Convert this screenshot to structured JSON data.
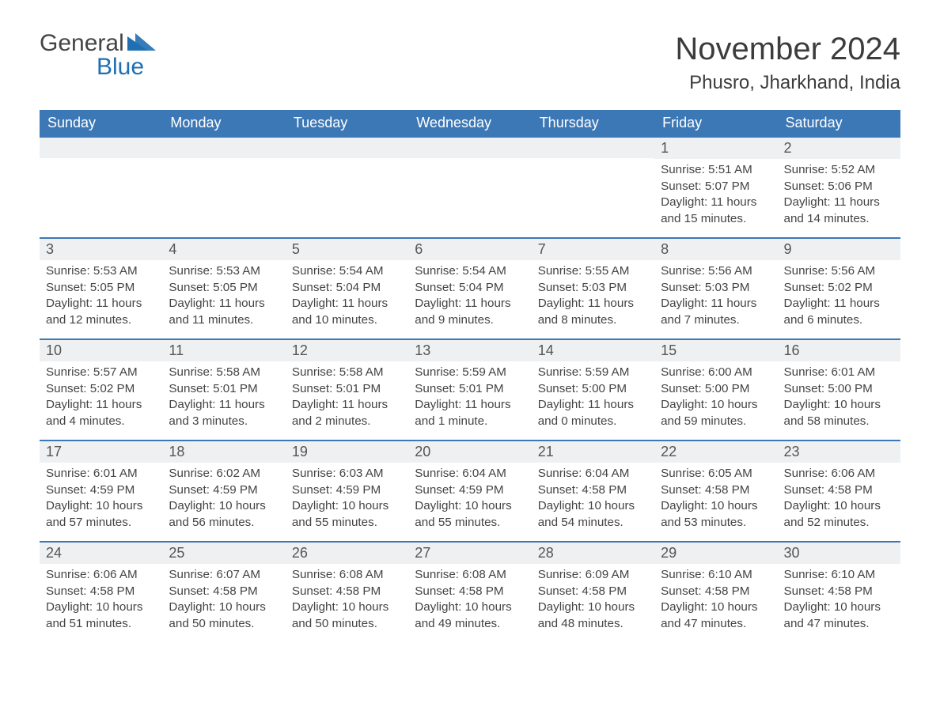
{
  "logo": {
    "word1": "General",
    "word2": "Blue",
    "accent_color": "#1f6fb2"
  },
  "title": {
    "month": "November 2024",
    "location": "Phusro, Jharkhand, India"
  },
  "colors": {
    "header_bg": "#3d78b6",
    "header_text": "#ffffff",
    "daynum_bg": "#eef0f2",
    "row_border": "#3d78b6",
    "body_text": "#444444",
    "title_text": "#3c3c3c",
    "page_bg": "#ffffff"
  },
  "typography": {
    "title_fontsize_pt": 30,
    "location_fontsize_pt": 18,
    "header_fontsize_pt": 14,
    "daynum_fontsize_pt": 14,
    "body_fontsize_pt": 11
  },
  "layout": {
    "columns": 7,
    "rows": 5,
    "week_start": "Sunday"
  },
  "day_headers": [
    "Sunday",
    "Monday",
    "Tuesday",
    "Wednesday",
    "Thursday",
    "Friday",
    "Saturday"
  ],
  "labels": {
    "sunrise": "Sunrise",
    "sunset": "Sunset",
    "daylight": "Daylight"
  },
  "weeks": [
    [
      null,
      null,
      null,
      null,
      null,
      {
        "date": 1,
        "sunrise": "5:51 AM",
        "sunset": "5:07 PM",
        "daylight": "11 hours and 15 minutes."
      },
      {
        "date": 2,
        "sunrise": "5:52 AM",
        "sunset": "5:06 PM",
        "daylight": "11 hours and 14 minutes."
      }
    ],
    [
      {
        "date": 3,
        "sunrise": "5:53 AM",
        "sunset": "5:05 PM",
        "daylight": "11 hours and 12 minutes."
      },
      {
        "date": 4,
        "sunrise": "5:53 AM",
        "sunset": "5:05 PM",
        "daylight": "11 hours and 11 minutes."
      },
      {
        "date": 5,
        "sunrise": "5:54 AM",
        "sunset": "5:04 PM",
        "daylight": "11 hours and 10 minutes."
      },
      {
        "date": 6,
        "sunrise": "5:54 AM",
        "sunset": "5:04 PM",
        "daylight": "11 hours and 9 minutes."
      },
      {
        "date": 7,
        "sunrise": "5:55 AM",
        "sunset": "5:03 PM",
        "daylight": "11 hours and 8 minutes."
      },
      {
        "date": 8,
        "sunrise": "5:56 AM",
        "sunset": "5:03 PM",
        "daylight": "11 hours and 7 minutes."
      },
      {
        "date": 9,
        "sunrise": "5:56 AM",
        "sunset": "5:02 PM",
        "daylight": "11 hours and 6 minutes."
      }
    ],
    [
      {
        "date": 10,
        "sunrise": "5:57 AM",
        "sunset": "5:02 PM",
        "daylight": "11 hours and 4 minutes."
      },
      {
        "date": 11,
        "sunrise": "5:58 AM",
        "sunset": "5:01 PM",
        "daylight": "11 hours and 3 minutes."
      },
      {
        "date": 12,
        "sunrise": "5:58 AM",
        "sunset": "5:01 PM",
        "daylight": "11 hours and 2 minutes."
      },
      {
        "date": 13,
        "sunrise": "5:59 AM",
        "sunset": "5:01 PM",
        "daylight": "11 hours and 1 minute."
      },
      {
        "date": 14,
        "sunrise": "5:59 AM",
        "sunset": "5:00 PM",
        "daylight": "11 hours and 0 minutes."
      },
      {
        "date": 15,
        "sunrise": "6:00 AM",
        "sunset": "5:00 PM",
        "daylight": "10 hours and 59 minutes."
      },
      {
        "date": 16,
        "sunrise": "6:01 AM",
        "sunset": "5:00 PM",
        "daylight": "10 hours and 58 minutes."
      }
    ],
    [
      {
        "date": 17,
        "sunrise": "6:01 AM",
        "sunset": "4:59 PM",
        "daylight": "10 hours and 57 minutes."
      },
      {
        "date": 18,
        "sunrise": "6:02 AM",
        "sunset": "4:59 PM",
        "daylight": "10 hours and 56 minutes."
      },
      {
        "date": 19,
        "sunrise": "6:03 AM",
        "sunset": "4:59 PM",
        "daylight": "10 hours and 55 minutes."
      },
      {
        "date": 20,
        "sunrise": "6:04 AM",
        "sunset": "4:59 PM",
        "daylight": "10 hours and 55 minutes."
      },
      {
        "date": 21,
        "sunrise": "6:04 AM",
        "sunset": "4:58 PM",
        "daylight": "10 hours and 54 minutes."
      },
      {
        "date": 22,
        "sunrise": "6:05 AM",
        "sunset": "4:58 PM",
        "daylight": "10 hours and 53 minutes."
      },
      {
        "date": 23,
        "sunrise": "6:06 AM",
        "sunset": "4:58 PM",
        "daylight": "10 hours and 52 minutes."
      }
    ],
    [
      {
        "date": 24,
        "sunrise": "6:06 AM",
        "sunset": "4:58 PM",
        "daylight": "10 hours and 51 minutes."
      },
      {
        "date": 25,
        "sunrise": "6:07 AM",
        "sunset": "4:58 PM",
        "daylight": "10 hours and 50 minutes."
      },
      {
        "date": 26,
        "sunrise": "6:08 AM",
        "sunset": "4:58 PM",
        "daylight": "10 hours and 50 minutes."
      },
      {
        "date": 27,
        "sunrise": "6:08 AM",
        "sunset": "4:58 PM",
        "daylight": "10 hours and 49 minutes."
      },
      {
        "date": 28,
        "sunrise": "6:09 AM",
        "sunset": "4:58 PM",
        "daylight": "10 hours and 48 minutes."
      },
      {
        "date": 29,
        "sunrise": "6:10 AM",
        "sunset": "4:58 PM",
        "daylight": "10 hours and 47 minutes."
      },
      {
        "date": 30,
        "sunrise": "6:10 AM",
        "sunset": "4:58 PM",
        "daylight": "10 hours and 47 minutes."
      }
    ]
  ]
}
